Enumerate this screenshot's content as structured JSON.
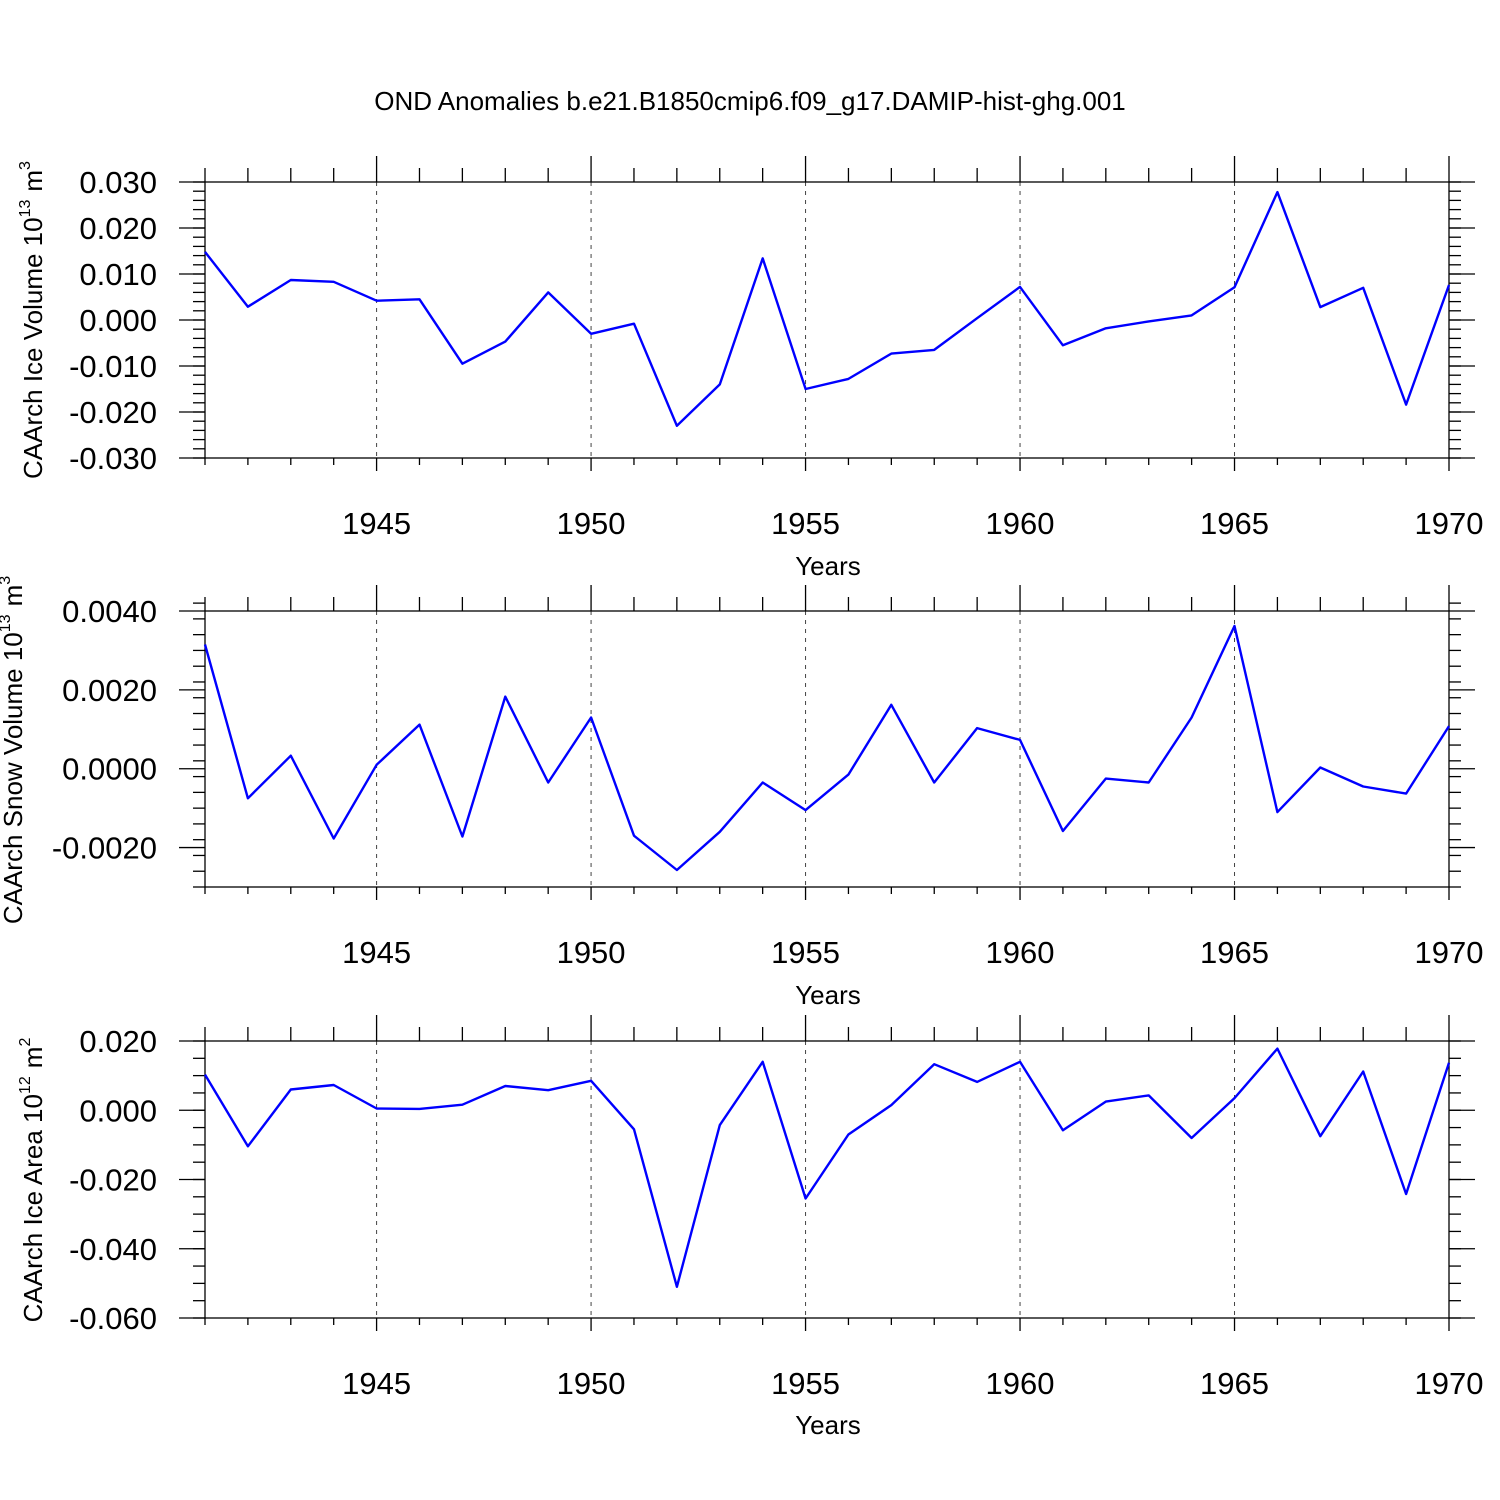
{
  "title": "OND Anomalies b.e21.B1850cmip6.f09_g17.DAMIP-hist-ghg.001",
  "colors": {
    "line": "#0000ff",
    "axis": "#000000",
    "grid": "#444444"
  },
  "chart_data": [
    {
      "type": "line",
      "xlabel": "Years",
      "ylabel": "CAArch Ice Volume 10",
      "ylabel_exp": "13",
      "ylabel_unit": "m",
      "ylabel_unit_exp": "3",
      "xlim": [
        1941,
        1970
      ],
      "ylim": [
        -0.03,
        0.03
      ],
      "xticks": [
        1945,
        1950,
        1955,
        1960,
        1965,
        1970
      ],
      "yticks": [
        0.03,
        0.02,
        0.01,
        0.0,
        -0.01,
        -0.02,
        -0.03
      ],
      "ytick_labels": [
        "0.030",
        "0.020",
        "0.010",
        "0.000",
        "-0.010",
        "-0.020",
        "-0.030"
      ],
      "yminor_step": 0.002,
      "grid": "vertical dashed at major x ticks",
      "x": [
        1941,
        1942,
        1943,
        1944,
        1945,
        1946,
        1947,
        1948,
        1949,
        1950,
        1951,
        1952,
        1953,
        1954,
        1955,
        1956,
        1957,
        1958,
        1959,
        1960,
        1961,
        1962,
        1963,
        1964,
        1965,
        1966,
        1967,
        1968,
        1969,
        1970
      ],
      "series": [
        {
          "values": [
            0.0148,
            0.0029,
            0.0087,
            0.0083,
            0.0042,
            0.0045,
            -0.0095,
            -0.0047,
            0.006,
            -0.003,
            -0.0008,
            -0.023,
            -0.014,
            0.0134,
            -0.015,
            -0.0128,
            -0.0073,
            -0.0065,
            0.0004,
            0.0072,
            -0.0055,
            -0.0018,
            -0.0003,
            0.001,
            0.0071,
            0.0278,
            0.0028,
            0.007,
            -0.0184,
            0.0076
          ]
        }
      ]
    },
    {
      "type": "line",
      "xlabel": "Years",
      "ylabel": "CAArch Snow Volume 10",
      "ylabel_exp": "13",
      "ylabel_unit": "m",
      "ylabel_unit_exp": "3",
      "xlim": [
        1941,
        1970
      ],
      "ylim": [
        -0.003,
        0.004
      ],
      "xticks": [
        1945,
        1950,
        1955,
        1960,
        1965,
        1970
      ],
      "yticks": [
        0.004,
        0.002,
        0.0,
        -0.002
      ],
      "ytick_labels": [
        "0.0040",
        "0.0020",
        "0.0000",
        "-0.0020"
      ],
      "yminor_step": 0.0004,
      "grid": "vertical dashed at major x ticks",
      "x": [
        1941,
        1942,
        1943,
        1944,
        1945,
        1946,
        1947,
        1948,
        1949,
        1950,
        1951,
        1952,
        1953,
        1954,
        1955,
        1956,
        1957,
        1958,
        1959,
        1960,
        1961,
        1962,
        1963,
        1964,
        1965,
        1966,
        1967,
        1968,
        1969,
        1970
      ],
      "series": [
        {
          "values": [
            0.00315,
            -0.00075,
            0.00033,
            -0.00177,
            0.0001,
            0.00112,
            -0.00172,
            0.00183,
            -0.00035,
            0.0013,
            -0.0017,
            -0.00257,
            -0.0016,
            -0.00035,
            -0.00105,
            -0.00015,
            0.00162,
            -0.00035,
            0.00103,
            0.00073,
            -0.00158,
            -0.00025,
            -0.00035,
            0.0013,
            0.00362,
            -0.0011,
            3e-05,
            -0.00045,
            -0.00063,
            0.00108
          ]
        }
      ]
    },
    {
      "type": "line",
      "xlabel": "Years",
      "ylabel": "CAArch Ice Area 10",
      "ylabel_exp": "12",
      "ylabel_unit": "m",
      "ylabel_unit_exp": "2",
      "xlim": [
        1941,
        1970
      ],
      "ylim": [
        -0.06,
        0.02
      ],
      "xticks": [
        1945,
        1950,
        1955,
        1960,
        1965,
        1970
      ],
      "yticks": [
        0.02,
        0.0,
        -0.02,
        -0.04,
        -0.06
      ],
      "ytick_labels": [
        "0.020",
        "0.000",
        "-0.020",
        "-0.040",
        "-0.060"
      ],
      "yminor_step": 0.005,
      "grid": "vertical dashed at major x ticks",
      "x": [
        1941,
        1942,
        1943,
        1944,
        1945,
        1946,
        1947,
        1948,
        1949,
        1950,
        1951,
        1952,
        1953,
        1954,
        1955,
        1956,
        1957,
        1958,
        1959,
        1960,
        1961,
        1962,
        1963,
        1964,
        1965,
        1966,
        1967,
        1968,
        1969,
        1970
      ],
      "series": [
        {
          "values": [
            0.0103,
            -0.0104,
            0.006,
            0.0073,
            0.0005,
            0.0004,
            0.0016,
            0.007,
            0.0058,
            0.0085,
            -0.0055,
            -0.051,
            -0.0043,
            0.014,
            -0.0255,
            -0.007,
            0.0015,
            0.0133,
            0.0082,
            0.014,
            -0.0058,
            0.0025,
            0.0043,
            -0.008,
            0.0035,
            0.0178,
            -0.0075,
            0.0112,
            -0.0242,
            0.0137
          ]
        }
      ]
    }
  ]
}
